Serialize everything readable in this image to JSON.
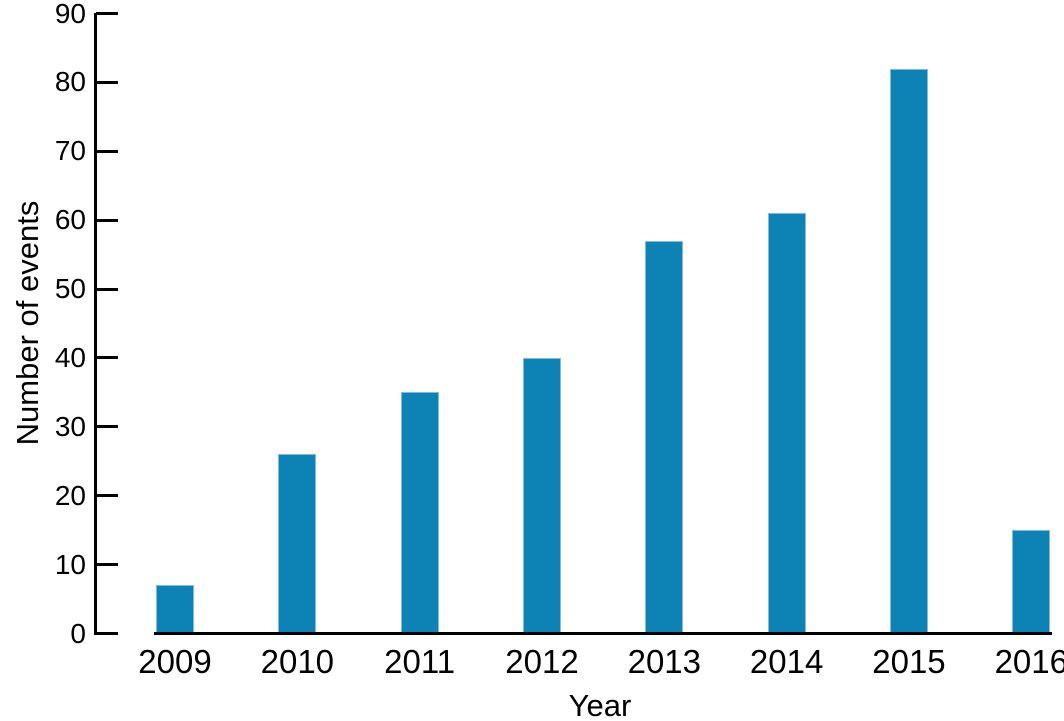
{
  "figure": {
    "background": "#ffffff"
  },
  "chart_data": {
    "type": "bar",
    "title": "",
    "xlabel": "Year",
    "ylabel": "Number of events",
    "categories": [
      "2009",
      "2010",
      "2011",
      "2012",
      "2013",
      "2014",
      "2015",
      "2016"
    ],
    "values": [
      7,
      26,
      35,
      40,
      57,
      61,
      82,
      15
    ],
    "ylim": [
      0,
      90
    ],
    "yticks": [
      0,
      10,
      20,
      30,
      40,
      50,
      60,
      70,
      80,
      90
    ],
    "grid": false,
    "legend": "none",
    "colors": {
      "bar": "#0d82b5",
      "bar_edge": "#7fbcdb",
      "axis": "#000000",
      "text": "#000000"
    }
  }
}
